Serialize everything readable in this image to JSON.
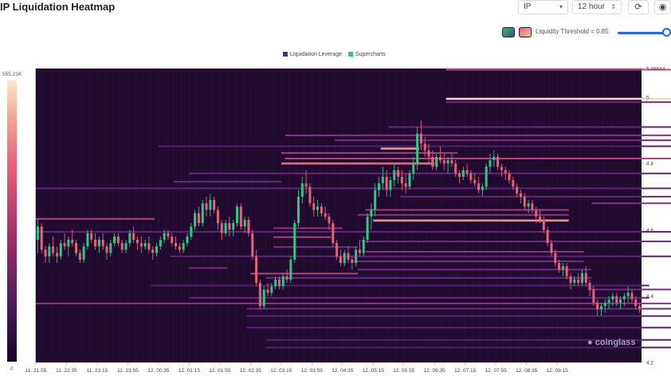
{
  "header": {
    "title": "IP Liquidation Heatmap",
    "symbol": "IP",
    "interval": "12 hour",
    "refresh_icon": "refresh-icon",
    "camera_icon": "camera-icon"
  },
  "controls": {
    "threshold_label": "Liquidity Threshold = 0.85",
    "threshold_value": 0.85,
    "palette_a": {
      "icon": "palette-viridis-icon",
      "color": "#35b779"
    },
    "palette_b": {
      "icon": "palette-heat-icon",
      "color": "#e8607a"
    }
  },
  "watermark": "coinglass",
  "chart_data": {
    "type": "heatmap",
    "legend": [
      {
        "label": "Liquidation Leverage",
        "color": "#5a2d7a"
      },
      {
        "label": "Supercharts",
        "color": "#2ec784"
      }
    ],
    "colorbar": {
      "min_label": "0",
      "max_label": "555.21K",
      "min": 0,
      "max": 555210
    },
    "y_axis": {
      "ticks": [
        "4.2",
        "4.4",
        "4.6",
        "4.8",
        "5",
        "5.08644"
      ],
      "min": 4.2,
      "max": 5.08644
    },
    "x_axis": {
      "ticks": [
        "11. 21:55",
        "11. 22:35",
        "11. 23:15",
        "11. 23:55",
        "12. 00:35",
        "12. 01:15",
        "12. 01:55",
        "12. 02:35",
        "12. 03:15",
        "12. 03:55",
        "12. 04:35",
        "12. 05:15",
        "12. 05:55",
        "12. 06:35",
        "12. 07:15",
        "12. 07:55",
        "12. 08:35",
        "12. 09:15"
      ],
      "first_tick_index": 0,
      "tick_every": 8
    },
    "colors": {
      "up": "#2ec784",
      "down": "#e8607a",
      "background": "#200a2e"
    },
    "bands": [
      {
        "price": 5.083,
        "start": 107,
        "end": 168,
        "level": 0.6
      },
      {
        "price": 4.995,
        "start": 107,
        "end": 168,
        "level": 0.95
      },
      {
        "price": 4.985,
        "start": 107,
        "end": 168,
        "level": 0.35
      },
      {
        "price": 4.91,
        "start": 92,
        "end": 168,
        "level": 0.3
      },
      {
        "price": 4.885,
        "start": 65,
        "end": 168,
        "level": 0.45
      },
      {
        "price": 4.87,
        "start": 78,
        "end": 168,
        "level": 0.4
      },
      {
        "price": 4.852,
        "start": 32,
        "end": 168,
        "level": 0.2
      },
      {
        "price": 4.845,
        "start": 90,
        "end": 100,
        "level": 0.8
      },
      {
        "price": 4.832,
        "start": 64,
        "end": 110,
        "level": 0.5
      },
      {
        "price": 4.815,
        "start": 65,
        "end": 168,
        "level": 0.55
      },
      {
        "price": 4.8,
        "start": 64,
        "end": 104,
        "level": 0.7
      },
      {
        "price": 4.77,
        "start": 40,
        "end": 168,
        "level": 0.3
      },
      {
        "price": 4.745,
        "start": 36,
        "end": 64,
        "level": 0.35
      },
      {
        "price": 4.725,
        "start": 0,
        "end": 168,
        "level": 0.25
      },
      {
        "price": 4.7,
        "start": 95,
        "end": 168,
        "level": 0.3
      },
      {
        "price": 4.68,
        "start": 145,
        "end": 168,
        "level": 0.45
      },
      {
        "price": 4.66,
        "start": 86,
        "end": 139,
        "level": 0.5
      },
      {
        "price": 4.645,
        "start": 84,
        "end": 139,
        "level": 0.45
      },
      {
        "price": 4.633,
        "start": 0,
        "end": 31,
        "level": 0.55
      },
      {
        "price": 4.628,
        "start": 88,
        "end": 139,
        "level": 0.8
      },
      {
        "price": 4.605,
        "start": 62,
        "end": 80,
        "level": 0.45
      },
      {
        "price": 4.594,
        "start": 0,
        "end": 168,
        "level": 0.25
      },
      {
        "price": 4.578,
        "start": 62,
        "end": 77,
        "level": 0.55
      },
      {
        "price": 4.565,
        "start": 85,
        "end": 168,
        "level": 0.35
      },
      {
        "price": 4.548,
        "start": 62,
        "end": 84,
        "level": 0.4
      },
      {
        "price": 4.534,
        "start": 86,
        "end": 143,
        "level": 0.45
      },
      {
        "price": 4.52,
        "start": 35,
        "end": 168,
        "level": 0.25
      },
      {
        "price": 4.505,
        "start": 83,
        "end": 143,
        "level": 0.4
      },
      {
        "price": 4.485,
        "start": 40,
        "end": 50,
        "level": 0.4
      },
      {
        "price": 4.48,
        "start": 84,
        "end": 145,
        "level": 0.4
      },
      {
        "price": 4.468,
        "start": 56,
        "end": 84,
        "level": 0.55
      },
      {
        "price": 4.455,
        "start": 60,
        "end": 145,
        "level": 0.35
      },
      {
        "price": 4.432,
        "start": 30,
        "end": 160,
        "level": 0.2
      },
      {
        "price": 4.42,
        "start": 144,
        "end": 168,
        "level": 0.4
      },
      {
        "price": 4.395,
        "start": 40,
        "end": 160,
        "level": 0.3
      },
      {
        "price": 4.378,
        "start": 0,
        "end": 168,
        "level": 0.45
      },
      {
        "price": 4.362,
        "start": 55,
        "end": 168,
        "level": 0.35
      },
      {
        "price": 4.34,
        "start": 55,
        "end": 168,
        "level": 0.25
      },
      {
        "price": 4.305,
        "start": 55,
        "end": 168,
        "level": 0.2
      },
      {
        "price": 4.268,
        "start": 60,
        "end": 168,
        "level": 0.2
      },
      {
        "price": 4.245,
        "start": 60,
        "end": 168,
        "level": 0.15
      }
    ],
    "candles": [
      [
        4.57,
        4.63,
        4.53,
        4.61
      ],
      [
        4.61,
        4.62,
        4.53,
        4.54
      ],
      [
        4.54,
        4.55,
        4.5,
        4.52
      ],
      [
        4.52,
        4.56,
        4.5,
        4.55
      ],
      [
        4.55,
        4.58,
        4.52,
        4.53
      ],
      [
        4.53,
        4.55,
        4.5,
        4.52
      ],
      [
        4.52,
        4.57,
        4.51,
        4.56
      ],
      [
        4.56,
        4.59,
        4.54,
        4.55
      ],
      [
        4.55,
        4.58,
        4.52,
        4.57
      ],
      [
        4.57,
        4.6,
        4.55,
        4.56
      ],
      [
        4.56,
        4.57,
        4.52,
        4.53
      ],
      [
        4.53,
        4.54,
        4.5,
        4.51
      ],
      [
        4.51,
        4.56,
        4.5,
        4.55
      ],
      [
        4.55,
        4.6,
        4.54,
        4.59
      ],
      [
        4.59,
        4.6,
        4.56,
        4.57
      ],
      [
        4.57,
        4.59,
        4.54,
        4.55
      ],
      [
        4.55,
        4.58,
        4.53,
        4.57
      ],
      [
        4.57,
        4.59,
        4.54,
        4.55
      ],
      [
        4.55,
        4.56,
        4.51,
        4.53
      ],
      [
        4.53,
        4.57,
        4.52,
        4.56
      ],
      [
        4.56,
        4.59,
        4.55,
        4.58
      ],
      [
        4.58,
        4.59,
        4.55,
        4.56
      ],
      [
        4.56,
        4.57,
        4.53,
        4.54
      ],
      [
        4.54,
        4.57,
        4.53,
        4.56
      ],
      [
        4.56,
        4.6,
        4.55,
        4.59
      ],
      [
        4.59,
        4.61,
        4.56,
        4.57
      ],
      [
        4.57,
        4.58,
        4.54,
        4.56
      ],
      [
        4.56,
        4.58,
        4.53,
        4.55
      ],
      [
        4.55,
        4.57,
        4.54,
        4.56
      ],
      [
        4.56,
        4.58,
        4.53,
        4.54
      ],
      [
        4.54,
        4.55,
        4.51,
        4.53
      ],
      [
        4.53,
        4.56,
        4.52,
        4.55
      ],
      [
        4.55,
        4.58,
        4.54,
        4.57
      ],
      [
        4.57,
        4.6,
        4.56,
        4.59
      ],
      [
        4.59,
        4.6,
        4.57,
        4.58
      ],
      [
        4.58,
        4.59,
        4.55,
        4.56
      ],
      [
        4.56,
        4.58,
        4.54,
        4.55
      ],
      [
        4.55,
        4.56,
        4.53,
        4.54
      ],
      [
        4.54,
        4.57,
        4.53,
        4.56
      ],
      [
        4.56,
        4.59,
        4.55,
        4.58
      ],
      [
        4.58,
        4.62,
        4.57,
        4.61
      ],
      [
        4.61,
        4.66,
        4.6,
        4.65
      ],
      [
        4.65,
        4.67,
        4.61,
        4.62
      ],
      [
        4.62,
        4.69,
        4.61,
        4.68
      ],
      [
        4.68,
        4.7,
        4.64,
        4.66
      ],
      [
        4.66,
        4.71,
        4.64,
        4.69
      ],
      [
        4.69,
        4.7,
        4.65,
        4.66
      ],
      [
        4.66,
        4.67,
        4.6,
        4.62
      ],
      [
        4.62,
        4.63,
        4.57,
        4.59
      ],
      [
        4.59,
        4.63,
        4.58,
        4.62
      ],
      [
        4.62,
        4.64,
        4.58,
        4.6
      ],
      [
        4.6,
        4.63,
        4.58,
        4.62
      ],
      [
        4.62,
        4.68,
        4.61,
        4.67
      ],
      [
        4.67,
        4.68,
        4.6,
        4.61
      ],
      [
        4.61,
        4.64,
        4.59,
        4.63
      ],
      [
        4.63,
        4.64,
        4.58,
        4.59
      ],
      [
        4.59,
        4.6,
        4.51,
        4.52
      ],
      [
        4.52,
        4.54,
        4.43,
        4.44
      ],
      [
        4.44,
        4.45,
        4.36,
        4.37
      ],
      [
        4.37,
        4.43,
        4.36,
        4.42
      ],
      [
        4.42,
        4.44,
        4.4,
        4.41
      ],
      [
        4.41,
        4.44,
        4.4,
        4.43
      ],
      [
        4.43,
        4.46,
        4.42,
        4.45
      ],
      [
        4.45,
        4.46,
        4.42,
        4.43
      ],
      [
        4.43,
        4.47,
        4.42,
        4.46
      ],
      [
        4.46,
        4.48,
        4.44,
        4.45
      ],
      [
        4.45,
        4.52,
        4.44,
        4.51
      ],
      [
        4.51,
        4.63,
        4.5,
        4.62
      ],
      [
        4.62,
        4.72,
        4.61,
        4.7
      ],
      [
        4.7,
        4.76,
        4.68,
        4.74
      ],
      [
        4.74,
        4.78,
        4.71,
        4.73
      ],
      [
        4.73,
        4.74,
        4.67,
        4.68
      ],
      [
        4.68,
        4.7,
        4.64,
        4.66
      ],
      [
        4.66,
        4.69,
        4.64,
        4.67
      ],
      [
        4.67,
        4.68,
        4.64,
        4.65
      ],
      [
        4.65,
        4.67,
        4.63,
        4.64
      ],
      [
        4.64,
        4.65,
        4.6,
        4.62
      ],
      [
        4.62,
        4.63,
        4.55,
        4.56
      ],
      [
        4.56,
        4.57,
        4.51,
        4.52
      ],
      [
        4.52,
        4.54,
        4.49,
        4.5
      ],
      [
        4.5,
        4.54,
        4.49,
        4.53
      ],
      [
        4.53,
        4.55,
        4.5,
        4.51
      ],
      [
        4.51,
        4.52,
        4.48,
        4.5
      ],
      [
        4.5,
        4.55,
        4.49,
        4.54
      ],
      [
        4.54,
        4.57,
        4.52,
        4.53
      ],
      [
        4.53,
        4.58,
        4.52,
        4.57
      ],
      [
        4.57,
        4.65,
        4.56,
        4.64
      ],
      [
        4.64,
        4.68,
        4.6,
        4.66
      ],
      [
        4.66,
        4.74,
        4.64,
        4.72
      ],
      [
        4.72,
        4.76,
        4.7,
        4.74
      ],
      [
        4.74,
        4.79,
        4.72,
        4.76
      ],
      [
        4.76,
        4.78,
        4.7,
        4.72
      ],
      [
        4.72,
        4.76,
        4.7,
        4.75
      ],
      [
        4.75,
        4.8,
        4.73,
        4.78
      ],
      [
        4.78,
        4.79,
        4.74,
        4.76
      ],
      [
        4.76,
        4.78,
        4.72,
        4.74
      ],
      [
        4.74,
        4.77,
        4.71,
        4.73
      ],
      [
        4.73,
        4.78,
        4.72,
        4.77
      ],
      [
        4.77,
        4.82,
        4.75,
        4.8
      ],
      [
        4.8,
        4.91,
        4.78,
        4.89
      ],
      [
        4.89,
        4.93,
        4.84,
        4.86
      ],
      [
        4.86,
        4.88,
        4.82,
        4.84
      ],
      [
        4.84,
        4.86,
        4.8,
        4.82
      ],
      [
        4.82,
        4.84,
        4.78,
        4.79
      ],
      [
        4.79,
        4.83,
        4.78,
        4.82
      ],
      [
        4.82,
        4.85,
        4.8,
        4.81
      ],
      [
        4.81,
        4.83,
        4.78,
        4.8
      ],
      [
        4.8,
        4.82,
        4.77,
        4.81
      ],
      [
        4.81,
        4.83,
        4.79,
        4.8
      ],
      [
        4.8,
        4.81,
        4.76,
        4.77
      ],
      [
        4.77,
        4.78,
        4.74,
        4.76
      ],
      [
        4.76,
        4.79,
        4.75,
        4.78
      ],
      [
        4.78,
        4.8,
        4.76,
        4.77
      ],
      [
        4.77,
        4.78,
        4.74,
        4.75
      ],
      [
        4.75,
        4.77,
        4.73,
        4.74
      ],
      [
        4.74,
        4.76,
        4.71,
        4.72
      ],
      [
        4.72,
        4.74,
        4.7,
        4.73
      ],
      [
        4.73,
        4.8,
        4.72,
        4.79
      ],
      [
        4.79,
        4.83,
        4.77,
        4.81
      ],
      [
        4.81,
        4.84,
        4.79,
        4.82
      ],
      [
        4.82,
        4.83,
        4.78,
        4.79
      ],
      [
        4.79,
        4.8,
        4.76,
        4.78
      ],
      [
        4.78,
        4.79,
        4.75,
        4.77
      ],
      [
        4.77,
        4.78,
        4.74,
        4.75
      ],
      [
        4.75,
        4.76,
        4.72,
        4.73
      ],
      [
        4.73,
        4.74,
        4.7,
        4.71
      ],
      [
        4.71,
        4.72,
        4.68,
        4.7
      ],
      [
        4.7,
        4.71,
        4.66,
        4.67
      ],
      [
        4.67,
        4.69,
        4.65,
        4.68
      ],
      [
        4.68,
        4.69,
        4.65,
        4.66
      ],
      [
        4.66,
        4.67,
        4.62,
        4.64
      ],
      [
        4.64,
        4.66,
        4.62,
        4.63
      ],
      [
        4.63,
        4.64,
        4.59,
        4.6
      ],
      [
        4.6,
        4.61,
        4.55,
        4.56
      ],
      [
        4.56,
        4.57,
        4.52,
        4.53
      ],
      [
        4.53,
        4.54,
        4.49,
        4.5
      ],
      [
        4.5,
        4.51,
        4.47,
        4.48
      ],
      [
        4.48,
        4.5,
        4.46,
        4.49
      ],
      [
        4.49,
        4.5,
        4.45,
        4.46
      ],
      [
        4.46,
        4.47,
        4.42,
        4.44
      ],
      [
        4.44,
        4.46,
        4.43,
        4.45
      ],
      [
        4.45,
        4.47,
        4.43,
        4.44
      ],
      [
        4.44,
        4.48,
        4.43,
        4.47
      ],
      [
        4.47,
        4.49,
        4.43,
        4.44
      ],
      [
        4.44,
        4.45,
        4.4,
        4.42
      ],
      [
        4.42,
        4.43,
        4.37,
        4.38
      ],
      [
        4.38,
        4.39,
        4.34,
        4.36
      ],
      [
        4.36,
        4.38,
        4.34,
        4.37
      ],
      [
        4.37,
        4.39,
        4.35,
        4.38
      ],
      [
        4.38,
        4.4,
        4.36,
        4.39
      ],
      [
        4.39,
        4.41,
        4.37,
        4.4
      ],
      [
        4.4,
        4.41,
        4.37,
        4.38
      ],
      [
        4.38,
        4.4,
        4.36,
        4.39
      ],
      [
        4.39,
        4.41,
        4.37,
        4.4
      ],
      [
        4.4,
        4.43,
        4.38,
        4.41
      ],
      [
        4.41,
        4.42,
        4.38,
        4.39
      ],
      [
        4.39,
        4.4,
        4.36,
        4.37
      ],
      [
        4.37,
        4.38,
        4.35,
        4.36
      ]
    ]
  }
}
